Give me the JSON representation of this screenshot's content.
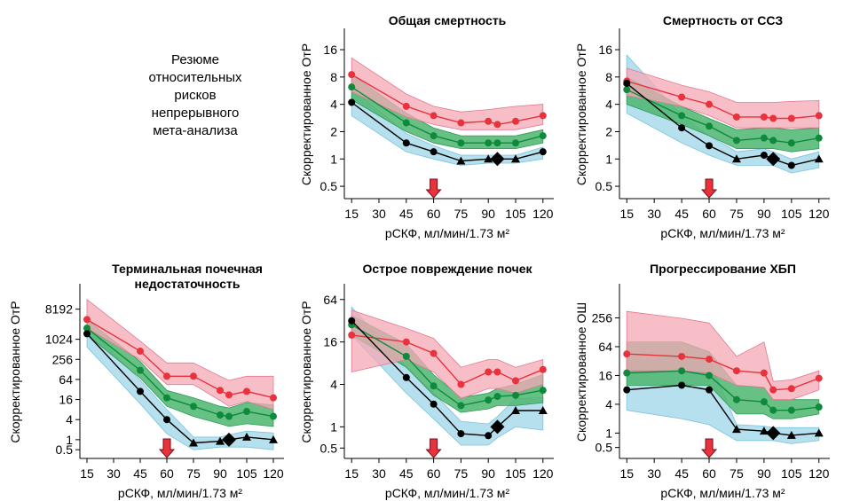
{
  "summary": {
    "lines": [
      "Резюме",
      "относительных",
      "рисков",
      "непрерывного",
      "мета-анализа"
    ]
  },
  "colors": {
    "red_line": "#e8323c",
    "red_band": "#f4a8b6",
    "green_line": "#0f8a3c",
    "green_band": "#4cb56e",
    "black_line": "#000000",
    "blue_band": "#a9dbea",
    "arrow": "#e8323c"
  },
  "reference_arrow_x": 60,
  "reference_marker_x": 95,
  "chart_data": [
    {
      "type": "line",
      "title": "Общая смертность",
      "xlabel": "рСКФ, мл/мин/1.73 м²",
      "ylabel": "Скорректированное ОтР",
      "y_scale": "log",
      "xticks": [
        15,
        30,
        45,
        60,
        75,
        90,
        105,
        120
      ],
      "xtick_labels": [
        "15",
        "30",
        "45",
        "60",
        "75",
        "90",
        "105",
        "120"
      ],
      "yticks": [
        0.5,
        1,
        2,
        4,
        8,
        16
      ],
      "ytick_labels": [
        "0.5",
        "1",
        "2",
        "4",
        "8",
        "16"
      ],
      "ylim": [
        0.4,
        24
      ],
      "series": [
        {
          "color_key": "red",
          "x": [
            15,
            45,
            60,
            75,
            90,
            95,
            105,
            120
          ],
          "values": [
            8.5,
            3.8,
            3.0,
            2.5,
            2.6,
            2.4,
            2.6,
            3.0
          ],
          "band_lower": [
            5.5,
            2.9,
            2.4,
            2.1,
            2.1,
            2.1,
            2.1,
            2.4
          ],
          "band_upper": [
            13.0,
            5.2,
            3.8,
            3.3,
            3.5,
            3.6,
            3.8,
            4.0
          ]
        },
        {
          "color_key": "green",
          "x": [
            15,
            45,
            60,
            75,
            90,
            95,
            105,
            120
          ],
          "values": [
            6.2,
            2.5,
            1.8,
            1.5,
            1.5,
            1.5,
            1.5,
            1.8
          ],
          "band_lower": [
            4.5,
            2.0,
            1.5,
            1.3,
            1.3,
            1.3,
            1.3,
            1.5
          ],
          "band_upper": [
            8.5,
            3.2,
            2.2,
            1.8,
            1.8,
            1.8,
            1.8,
            2.1
          ]
        },
        {
          "color_key": "black",
          "x": [
            15,
            45,
            60,
            75,
            90,
            95,
            105,
            120
          ],
          "values": [
            4.2,
            1.5,
            1.2,
            0.95,
            1.0,
            1.0,
            1.0,
            1.2
          ],
          "markers": [
            "circle",
            "circle",
            "circle",
            "triangle",
            "triangle",
            "diamond",
            "triangle",
            "circle"
          ],
          "band_lower": [
            3.0,
            1.2,
            1.0,
            0.85,
            0.9,
            0.9,
            0.9,
            1.0
          ],
          "band_upper": [
            6.0,
            1.9,
            1.4,
            1.1,
            1.1,
            1.1,
            1.1,
            1.35
          ]
        }
      ]
    },
    {
      "type": "line",
      "title": "Смертность от ССЗ",
      "xlabel": "рСКФ, мл/мин/1.73 м²",
      "ylabel": "Скорректированное ОтР",
      "y_scale": "log",
      "xticks": [
        15,
        30,
        45,
        60,
        75,
        90,
        105,
        120
      ],
      "xtick_labels": [
        "15",
        "30",
        "45",
        "60",
        "75",
        "90",
        "105",
        "120"
      ],
      "yticks": [
        0.5,
        1,
        2,
        4,
        8,
        16
      ],
      "ytick_labels": [
        "0.5",
        "1",
        "2",
        "4",
        "8",
        "16"
      ],
      "ylim": [
        0.4,
        24
      ],
      "series": [
        {
          "color_key": "red",
          "x": [
            15,
            45,
            60,
            75,
            90,
            95,
            105,
            120
          ],
          "values": [
            7.2,
            4.8,
            4.0,
            2.9,
            2.9,
            2.8,
            2.8,
            3.0
          ],
          "band_lower": [
            5.0,
            3.8,
            3.0,
            2.2,
            2.2,
            2.2,
            2.2,
            2.2
          ],
          "band_upper": [
            10.0,
            6.5,
            5.5,
            4.2,
            4.2,
            4.2,
            4.3,
            4.4
          ]
        },
        {
          "color_key": "green",
          "x": [
            15,
            45,
            60,
            75,
            90,
            95,
            105,
            120
          ],
          "values": [
            5.8,
            3.0,
            2.3,
            1.6,
            1.7,
            1.6,
            1.5,
            1.7
          ],
          "band_lower": [
            4.0,
            2.4,
            1.8,
            1.3,
            1.3,
            1.3,
            1.2,
            1.3
          ],
          "band_upper": [
            8.0,
            3.8,
            2.8,
            2.1,
            2.2,
            2.2,
            2.1,
            2.2
          ]
        },
        {
          "color_key": "black",
          "x": [
            15,
            45,
            60,
            75,
            90,
            95,
            105,
            120
          ],
          "values": [
            6.8,
            2.2,
            1.4,
            1.0,
            1.1,
            1.0,
            0.85,
            1.0
          ],
          "markers": [
            "circle",
            "circle",
            "circle",
            "triangle",
            "circle",
            "diamond",
            "circle",
            "triangle"
          ],
          "band_lower": [
            3.2,
            1.5,
            1.1,
            0.85,
            0.85,
            0.85,
            0.7,
            0.8
          ],
          "band_upper": [
            14.0,
            3.0,
            1.8,
            1.2,
            1.3,
            1.2,
            1.0,
            1.2
          ]
        }
      ]
    },
    {
      "type": "line",
      "title": "Терминальная почечная недостаточность",
      "title_lines": [
        "Терминальная почечная",
        "недостаточность"
      ],
      "xlabel": "рСКФ, мл/мин/1.73 м²",
      "ylabel": "Скорректированное ОтР",
      "y_scale": "log",
      "xticks": [
        15,
        30,
        45,
        60,
        75,
        90,
        105,
        120
      ],
      "xtick_labels": [
        "15",
        "30",
        "45",
        "60",
        "75",
        "90",
        "105",
        "120"
      ],
      "yticks": [
        0.5,
        1,
        4,
        16,
        64,
        256,
        1024,
        8192
      ],
      "ytick_labels": [
        "0.5",
        "1",
        "4",
        "16",
        "64",
        "256",
        "1024",
        "8192"
      ],
      "ylim": [
        0.35,
        32768
      ],
      "series": [
        {
          "color_key": "red",
          "x": [
            15,
            45,
            60,
            75,
            90,
            95,
            105,
            120
          ],
          "values": [
            4000,
            450,
            80,
            80,
            30,
            22,
            28,
            18
          ],
          "band_lower": [
            2200,
            250,
            45,
            45,
            15,
            10,
            14,
            8
          ],
          "band_upper": [
            16000,
            900,
            200,
            200,
            80,
            60,
            80,
            80
          ]
        },
        {
          "color_key": "green",
          "x": [
            15,
            45,
            60,
            75,
            90,
            95,
            105,
            120
          ],
          "values": [
            2200,
            120,
            18,
            10,
            5.5,
            5,
            7,
            5
          ],
          "band_lower": [
            1400,
            70,
            10,
            5,
            3,
            2.5,
            3,
            2.5
          ],
          "band_upper": [
            4000,
            220,
            30,
            18,
            10,
            9,
            13,
            11
          ]
        },
        {
          "color_key": "black",
          "x": [
            15,
            45,
            60,
            75,
            90,
            95,
            105,
            120
          ],
          "values": [
            1500,
            28,
            4,
            0.8,
            0.9,
            1.0,
            1.2,
            1.0
          ],
          "markers": [
            "circle",
            "circle",
            "circle",
            "triangle",
            "triangle",
            "diamond",
            "triangle",
            "triangle"
          ],
          "band_lower": [
            600,
            12,
            1.5,
            0.5,
            0.6,
            0.6,
            0.6,
            0.5
          ],
          "band_upper": [
            2500,
            60,
            8,
            1.2,
            1.2,
            1.4,
            1.8,
            1.6
          ]
        }
      ]
    },
    {
      "type": "line",
      "title": "Острое повреждение почек",
      "xlabel": "рСКФ, мл/мин/1.73 м²",
      "ylabel": "Скорректированное ОтР",
      "y_scale": "log",
      "xticks": [
        15,
        30,
        45,
        60,
        75,
        90,
        105,
        120
      ],
      "xtick_labels": [
        "15",
        "30",
        "45",
        "60",
        "75",
        "90",
        "105",
        "120"
      ],
      "yticks": [
        0.5,
        1,
        4,
        16,
        64
      ],
      "ytick_labels": [
        "0.5",
        "1",
        "4",
        "16",
        "64"
      ],
      "ylim": [
        0.4,
        90
      ],
      "series": [
        {
          "color_key": "red",
          "x": [
            15,
            45,
            60,
            75,
            90,
            95,
            105,
            120
          ],
          "values": [
            20,
            16,
            11,
            4,
            6,
            6,
            4.5,
            6.5
          ],
          "band_lower": [
            6,
            9,
            6,
            2.5,
            3.5,
            3.5,
            3,
            4
          ],
          "band_upper": [
            45,
            25,
            18,
            7,
            9,
            9,
            7,
            9
          ]
        },
        {
          "color_key": "green",
          "x": [
            15,
            45,
            60,
            75,
            90,
            95,
            105,
            120
          ],
          "values": [
            28,
            10,
            3.8,
            2,
            2.4,
            2.7,
            2.8,
            3.3
          ],
          "band_lower": [
            20,
            7,
            2.8,
            1.6,
            1.8,
            2,
            2,
            2.2
          ],
          "band_upper": [
            38,
            15,
            5.5,
            2.6,
            3,
            3.5,
            4,
            5.5
          ]
        },
        {
          "color_key": "black",
          "x": [
            15,
            45,
            60,
            75,
            90,
            95,
            105,
            120
          ],
          "values": [
            32,
            5,
            2.1,
            0.8,
            0.75,
            1.0,
            1.7,
            1.7
          ],
          "markers": [
            "circle",
            "circle",
            "circle",
            "circle",
            "circle",
            "diamond",
            "triangle",
            "triangle"
          ],
          "band_lower": [
            20,
            3,
            1.3,
            0.55,
            0.55,
            0.7,
            1.0,
            0.9
          ],
          "band_upper": [
            50,
            7,
            3,
            1.2,
            1.1,
            1.4,
            2.5,
            2.6
          ]
        }
      ]
    },
    {
      "type": "line",
      "title": "Прогрессирование ХБП",
      "xlabel": "рСКФ, мл/мин/1.73 м²",
      "ylabel": "Скорректированное ОШ",
      "y_scale": "log",
      "xticks": [
        15,
        30,
        45,
        60,
        75,
        90,
        105,
        120
      ],
      "xtick_labels": [
        "15",
        "30",
        "45",
        "60",
        "75",
        "90",
        "105",
        "120"
      ],
      "yticks": [
        0.5,
        1,
        4,
        16,
        64,
        256
      ],
      "ytick_labels": [
        "0.5",
        "1",
        "4",
        "16",
        "64",
        "256"
      ],
      "ylim": [
        0.35,
        1024
      ],
      "series": [
        {
          "color_key": "red",
          "x": [
            15,
            45,
            60,
            75,
            90,
            95,
            105,
            120
          ],
          "values": [
            45,
            40,
            35,
            20,
            18,
            8,
            8.5,
            14
          ],
          "band_lower": [
            20,
            20,
            18,
            10,
            9,
            5,
            5,
            8
          ],
          "band_upper": [
            350,
            250,
            200,
            40,
            80,
            12,
            13,
            20
          ]
        },
        {
          "color_key": "green",
          "x": [
            15,
            45,
            60,
            75,
            90,
            95,
            105,
            120
          ],
          "values": [
            18,
            20,
            16,
            5,
            4.5,
            3,
            3,
            3.5
          ],
          "band_lower": [
            10,
            10,
            10,
            2.5,
            2.5,
            2,
            2,
            2.5
          ],
          "band_upper": [
            80,
            80,
            50,
            10,
            9,
            5,
            5,
            5
          ]
        },
        {
          "color_key": "black",
          "x": [
            15,
            45,
            60,
            75,
            90,
            95,
            105,
            120
          ],
          "values": [
            8,
            10,
            8,
            1.2,
            1.1,
            1.0,
            0.9,
            1.0
          ],
          "markers": [
            "circle",
            "circle",
            "circle",
            "triangle",
            "triangle",
            "diamond",
            "triangle",
            "triangle"
          ],
          "band_lower": [
            3,
            2,
            1.5,
            0.7,
            0.7,
            0.7,
            0.6,
            0.7
          ],
          "band_upper": [
            30,
            40,
            35,
            1.5,
            1.4,
            1.3,
            1.3,
            1.3
          ]
        }
      ]
    }
  ]
}
